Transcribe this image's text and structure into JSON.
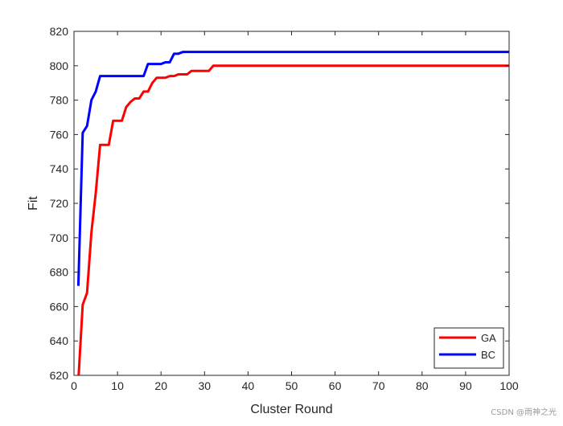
{
  "chart_data": {
    "type": "line",
    "title": "",
    "xlabel": "Cluster Round",
    "ylabel": "Fit",
    "xlim": [
      0,
      100
    ],
    "ylim": [
      620,
      820
    ],
    "xticks": [
      0,
      10,
      20,
      30,
      40,
      50,
      60,
      70,
      80,
      90,
      100
    ],
    "yticks": [
      620,
      640,
      660,
      680,
      700,
      720,
      740,
      760,
      780,
      800,
      820
    ],
    "grid": false,
    "legend_position": "bottom-right",
    "series": [
      {
        "name": "GA",
        "color": "#ff0000",
        "x": [
          1,
          2,
          3,
          4,
          5,
          6,
          7,
          8,
          9,
          10,
          11,
          12,
          13,
          14,
          15,
          16,
          17,
          18,
          19,
          20,
          21,
          22,
          23,
          24,
          25,
          26,
          27,
          28,
          30,
          31,
          32,
          33,
          100
        ],
        "y": [
          617,
          661,
          668,
          703,
          726,
          754,
          754,
          754,
          768,
          768,
          768,
          776,
          779,
          781,
          781,
          785,
          785,
          790,
          793,
          793,
          793,
          794,
          794,
          795,
          795,
          795,
          797,
          797,
          797,
          797,
          800,
          800,
          800
        ]
      },
      {
        "name": "BC",
        "color": "#0000ff",
        "x": [
          1,
          2,
          3,
          4,
          5,
          6,
          7,
          8,
          9,
          10,
          11,
          12,
          13,
          14,
          15,
          16,
          17,
          18,
          19,
          20,
          21,
          22,
          23,
          24,
          25,
          26,
          100
        ],
        "y": [
          672,
          761,
          765,
          780,
          785,
          794,
          794,
          794,
          794,
          794,
          794,
          794,
          794,
          794,
          794,
          794,
          801,
          801,
          801,
          801,
          802,
          802,
          807,
          807,
          808,
          808,
          808
        ]
      }
    ]
  },
  "watermark": "CSDN @雨神之光"
}
